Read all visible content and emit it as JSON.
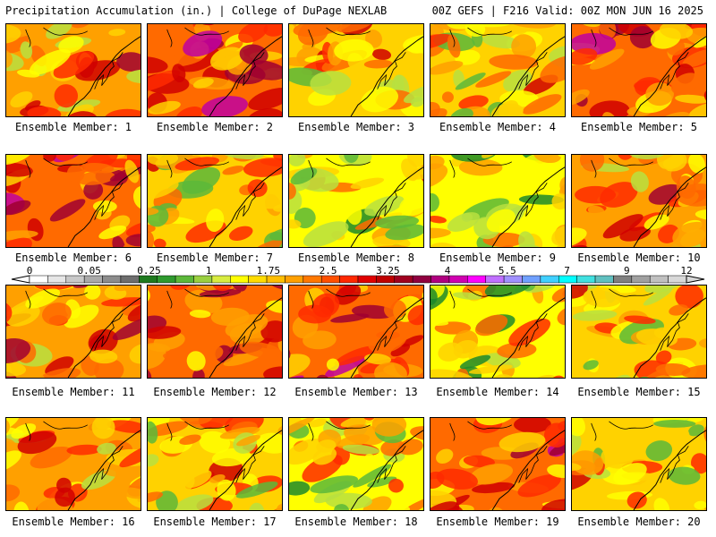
{
  "header": {
    "left": "Precipitation Accumulation (in.) | College of DuPage NEXLAB",
    "right": "00Z GEFS | F216 Valid: 00Z MON JUN 16 2025"
  },
  "members": [
    {
      "label": "Ensemble Member: 1",
      "tone": 3
    },
    {
      "label": "Ensemble Member: 2",
      "tone": 4
    },
    {
      "label": "Ensemble Member: 3",
      "tone": 2
    },
    {
      "label": "Ensemble Member: 4",
      "tone": 2
    },
    {
      "label": "Ensemble Member: 5",
      "tone": 4
    },
    {
      "label": "Ensemble Member: 6",
      "tone": 4
    },
    {
      "label": "Ensemble Member: 7",
      "tone": 2
    },
    {
      "label": "Ensemble Member: 8",
      "tone": 1
    },
    {
      "label": "Ensemble Member: 9",
      "tone": 1
    },
    {
      "label": "Ensemble Member: 10",
      "tone": 3
    },
    {
      "label": "Ensemble Member: 11",
      "tone": 3
    },
    {
      "label": "Ensemble Member: 12",
      "tone": 4
    },
    {
      "label": "Ensemble Member: 13",
      "tone": 4
    },
    {
      "label": "Ensemble Member: 14",
      "tone": 1
    },
    {
      "label": "Ensemble Member: 15",
      "tone": 2
    },
    {
      "label": "Ensemble Member: 16",
      "tone": 3
    },
    {
      "label": "Ensemble Member: 17",
      "tone": 2
    },
    {
      "label": "Ensemble Member: 18",
      "tone": 1
    },
    {
      "label": "Ensemble Member: 19",
      "tone": 4
    },
    {
      "label": "Ensemble Member: 20",
      "tone": 2
    }
  ],
  "colorbar": {
    "ticks": [
      "0",
      "0.05",
      "0.25",
      "1",
      "1.75",
      "2.5",
      "3.25",
      "4",
      "5.5",
      "7",
      "9",
      "12"
    ],
    "colors": [
      "#ffffff",
      "#e6e6e6",
      "#c8c8c8",
      "#aaaaaa",
      "#8c8c8c",
      "#6e6e6e",
      "#1e7a1e",
      "#2e9a2e",
      "#5cb83a",
      "#9ad040",
      "#d8ec40",
      "#ffff00",
      "#ffdc00",
      "#ffbe00",
      "#ffa000",
      "#ff7800",
      "#ff5000",
      "#ff2800",
      "#e00000",
      "#c00000",
      "#a00020",
      "#900040",
      "#b00080",
      "#d000b0",
      "#ff00ff",
      "#c070ff",
      "#a090ff",
      "#70a0ff",
      "#40d0ff",
      "#00ffff",
      "#40e0e0",
      "#60c0c0",
      "#808080",
      "#a0a0a0",
      "#c0c0c0",
      "#d8d8d8"
    ]
  }
}
